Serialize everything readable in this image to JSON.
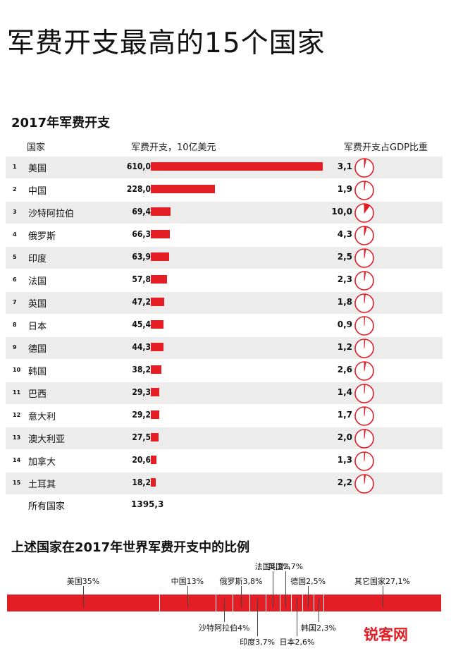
{
  "title": "军费开支最高的15个国家",
  "chart_data": [
    {
      "type": "table",
      "title": "2017年军费开支",
      "columns": [
        "国家",
        "军费开支，10亿美元",
        "军费开支占GDP比重"
      ],
      "rows": [
        {
          "rank": "1",
          "country": "美国",
          "spend": 610.0,
          "spend_label": "610,0",
          "gdp": 3.1,
          "gdp_label": "3,1"
        },
        {
          "rank": "2",
          "country": "中国",
          "spend": 228.0,
          "spend_label": "228,0",
          "gdp": 1.9,
          "gdp_label": "1,9"
        },
        {
          "rank": "3",
          "country": "沙特阿拉伯",
          "spend": 69.4,
          "spend_label": "69,4",
          "gdp": 10.0,
          "gdp_label": "10,0"
        },
        {
          "rank": "4",
          "country": "俄罗斯",
          "spend": 66.3,
          "spend_label": "66,3",
          "gdp": 4.3,
          "gdp_label": "4,3"
        },
        {
          "rank": "5",
          "country": "印度",
          "spend": 63.9,
          "spend_label": "63,9",
          "gdp": 2.5,
          "gdp_label": "2,5"
        },
        {
          "rank": "6",
          "country": "法国",
          "spend": 57.8,
          "spend_label": "57,8",
          "gdp": 2.3,
          "gdp_label": "2,3"
        },
        {
          "rank": "7",
          "country": "英国",
          "spend": 47.2,
          "spend_label": "47,2",
          "gdp": 1.8,
          "gdp_label": "1,8"
        },
        {
          "rank": "8",
          "country": "日本",
          "spend": 45.4,
          "spend_label": "45,4",
          "gdp": 0.9,
          "gdp_label": "0,9"
        },
        {
          "rank": "9",
          "country": "德国",
          "spend": 44.3,
          "spend_label": "44,3",
          "gdp": 1.2,
          "gdp_label": "1,2"
        },
        {
          "rank": "10",
          "country": "韩国",
          "spend": 38.2,
          "spend_label": "38,2",
          "gdp": 2.6,
          "gdp_label": "2,6"
        },
        {
          "rank": "11",
          "country": "巴西",
          "spend": 29.3,
          "spend_label": "29,3",
          "gdp": 1.4,
          "gdp_label": "1,4"
        },
        {
          "rank": "12",
          "country": "意大利",
          "spend": 29.2,
          "spend_label": "29,2",
          "gdp": 1.7,
          "gdp_label": "1,7"
        },
        {
          "rank": "13",
          "country": "澳大利亚",
          "spend": 27.5,
          "spend_label": "27,5",
          "gdp": 2.0,
          "gdp_label": "2,0"
        },
        {
          "rank": "14",
          "country": "加拿大",
          "spend": 20.6,
          "spend_label": "20,6",
          "gdp": 1.3,
          "gdp_label": "1,3"
        },
        {
          "rank": "15",
          "country": "土耳其",
          "spend": 18.2,
          "spend_label": "18,2",
          "gdp": 2.2,
          "gdp_label": "2,2"
        }
      ],
      "total_label": "所有国家",
      "total_value": "1395,3"
    },
    {
      "type": "bar",
      "title": "上述国家在2017年世界军费开支中的比例",
      "segments": [
        {
          "name": "美国",
          "value": 35,
          "label": "美国35%"
        },
        {
          "name": "中国",
          "value": 13,
          "label": "中国13%"
        },
        {
          "name": "沙特阿拉伯",
          "value": 4,
          "label": "沙特阿拉伯4%"
        },
        {
          "name": "俄罗斯",
          "value": 3.8,
          "label": "俄罗斯3,8%"
        },
        {
          "name": "印度",
          "value": 3.7,
          "label": "印度3,7%"
        },
        {
          "name": "法国",
          "value": 3.3,
          "label": "法国3,3%"
        },
        {
          "name": "英国",
          "value": 2.7,
          "label": "英国2,7%"
        },
        {
          "name": "日本",
          "value": 2.6,
          "label": "日本2,6%"
        },
        {
          "name": "德国",
          "value": 2.5,
          "label": "德国2,5%"
        },
        {
          "name": "韩国",
          "value": 2.3,
          "label": "韩国2,3%"
        },
        {
          "name": "其它国家",
          "value": 27.1,
          "label": "其它国家27,1%"
        }
      ],
      "colors": {
        "accent": "#e31e24"
      }
    }
  ],
  "watermark": "锐客网"
}
